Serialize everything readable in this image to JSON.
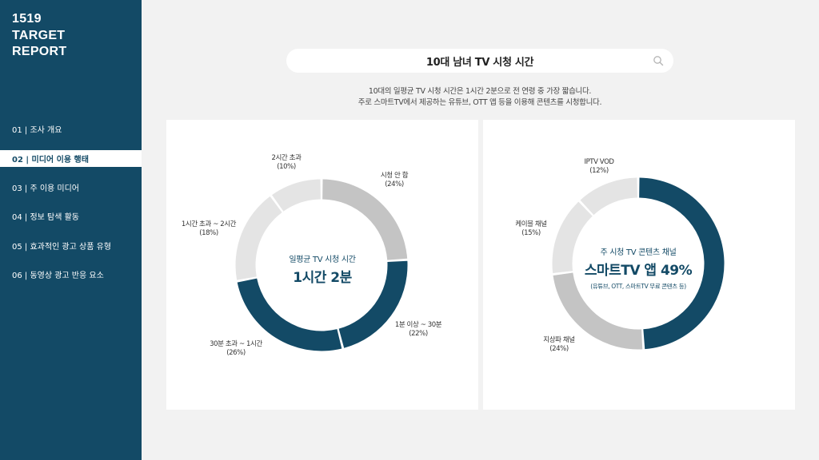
{
  "sidebar": {
    "brand": [
      "1519",
      "TARGET",
      "REPORT"
    ],
    "items": [
      {
        "label": "01 | 조사 개요",
        "active": false
      },
      {
        "label": "02 | 미디어 이용 행태",
        "active": true
      },
      {
        "label": "03 | 주 이용 미디어",
        "active": false
      },
      {
        "label": "04 | 정보 탐색 활동",
        "active": false
      },
      {
        "label": "05 | 효과적인 광고 상품 유형",
        "active": false
      },
      {
        "label": "06 | 동영상 광고 반응 요소",
        "active": false
      }
    ]
  },
  "header": {
    "title": "10대 남녀 TV 시청 시간",
    "search_icon": "search-icon"
  },
  "description": [
    "10대의 일평균 TV 시청 시간은 1시간 2분으로 전 연령 중 가장 짧습니다.",
    "주로 스마트TV에서 제공하는 유튜브, OTT 앱 등을 이용해 콘텐츠를 시청합니다."
  ],
  "colors": {
    "accent": "#134a66",
    "mid_gray": "#c4c4c4",
    "light_gray": "#e4e4e4"
  },
  "chart_data": [
    {
      "type": "pie",
      "center_label": "일평균 TV 시청 시간",
      "center_value": "1시간 2분",
      "slices": [
        {
          "label": "시청 안 함",
          "pct_text": "(24%)",
          "value": 24,
          "color": "#c4c4c4"
        },
        {
          "label": "1분 이상 ~ 30분",
          "pct_text": "(22%)",
          "value": 22,
          "color": "#134a66"
        },
        {
          "label": "30분 초과 ~ 1시간",
          "pct_text": "(26%)",
          "value": 26,
          "color": "#134a66"
        },
        {
          "label": "1시간 초과 ~ 2시간",
          "pct_text": "(18%)",
          "value": 18,
          "color": "#e4e4e4"
        },
        {
          "label": "2시간 초과",
          "pct_text": "(10%)",
          "value": 10,
          "color": "#e4e4e4"
        }
      ]
    },
    {
      "type": "pie",
      "center_label": "주 시청 TV 콘텐츠 채널",
      "center_value": "스마트TV 앱 49%",
      "center_note": "(유튜브, OTT, 스마트TV 무료 콘텐츠 등)",
      "slices": [
        {
          "label": "스마트TV 앱",
          "value": 49,
          "color": "#134a66"
        },
        {
          "label": "지상파 채널",
          "pct_text": "(24%)",
          "value": 24,
          "color": "#c4c4c4"
        },
        {
          "label": "케이블 채널",
          "pct_text": "(15%)",
          "value": 15,
          "color": "#e4e4e4"
        },
        {
          "label": "IPTV VOD",
          "pct_text": "(12%)",
          "value": 12,
          "color": "#e4e4e4"
        }
      ]
    }
  ]
}
